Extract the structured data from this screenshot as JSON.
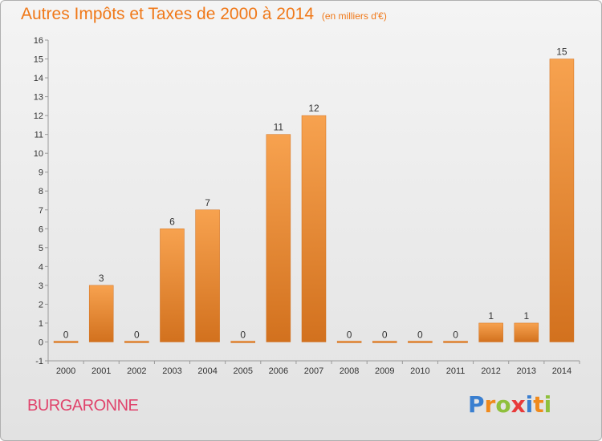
{
  "header": {
    "title": "Autres Impôts et Taxes de 2000 à 2014",
    "subtitle": "(en milliers d'€)"
  },
  "footer": {
    "commune": "BURGARONNE",
    "logo_letters": [
      "P",
      "r",
      "o",
      "x",
      "i",
      "t",
      "i"
    ],
    "logo_colors": [
      "#3a7fd0",
      "#f08a1c",
      "#8fc03c",
      "#e83a3a",
      "#3a7fd0",
      "#f08a1c",
      "#8fc03c"
    ]
  },
  "colors": {
    "bar_light": "#f7a24f",
    "bar_dark": "#d2711e",
    "accent": "#f07818",
    "commune": "#e0446c"
  },
  "chart_data": {
    "type": "bar",
    "categories": [
      "2000",
      "2001",
      "2002",
      "2003",
      "2004",
      "2005",
      "2006",
      "2007",
      "2008",
      "2009",
      "2010",
      "2011",
      "2012",
      "2013",
      "2014"
    ],
    "values": [
      0,
      3,
      0,
      6,
      7,
      0,
      11,
      12,
      0,
      0,
      0,
      0,
      1,
      1,
      15
    ],
    "title": "Autres Impôts et Taxes de 2000 à 2014",
    "subtitle": "(en milliers d'€)",
    "xlabel": "",
    "ylabel": "",
    "ylim": [
      -1,
      16
    ],
    "yticks": [
      -1,
      0,
      1,
      2,
      3,
      4,
      5,
      6,
      7,
      8,
      9,
      10,
      11,
      12,
      13,
      14,
      15,
      16
    ],
    "grid": false,
    "legend": "none"
  }
}
